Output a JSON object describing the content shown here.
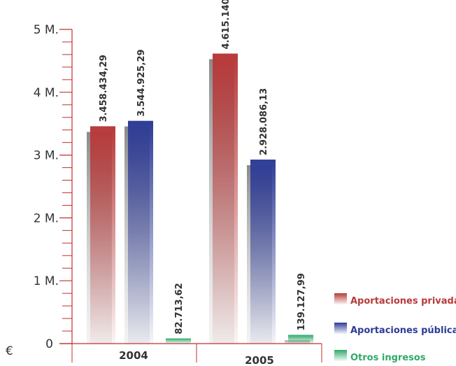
{
  "chart_data": {
    "type": "bar",
    "categories": [
      "2004",
      "2005"
    ],
    "series": [
      {
        "name": "Aportaciones privadas",
        "values": [
          3458434.29,
          4615140
        ],
        "labels": [
          "3.458.434,29",
          "4.615.140"
        ],
        "color": "#b83a3a"
      },
      {
        "name": "Aportaciones públicas",
        "values": [
          3544925.29,
          2928086.13
        ],
        "labels": [
          "3.544.925,29",
          "2.928.086,13"
        ],
        "color": "#2e3c96"
      },
      {
        "name": "Otros ingresos",
        "values": [
          82713.62,
          139127.99
        ],
        "labels": [
          "82.713,62",
          "139.127,99"
        ],
        "color": "#2faa6a"
      }
    ],
    "ylim": [
      0,
      5000000
    ],
    "yticks": [
      {
        "value": 0,
        "label": "0"
      },
      {
        "value": 1000000,
        "label": "1 M."
      },
      {
        "value": 2000000,
        "label": "2 M."
      },
      {
        "value": 3000000,
        "label": "3 M."
      },
      {
        "value": 4000000,
        "label": "4 M."
      },
      {
        "value": 5000000,
        "label": "5 M."
      }
    ],
    "minor_ticks_per_major": 5,
    "unit_label": "€",
    "legend_position": "bottom-right",
    "axis_color": "#c0312f",
    "grid": false
  }
}
